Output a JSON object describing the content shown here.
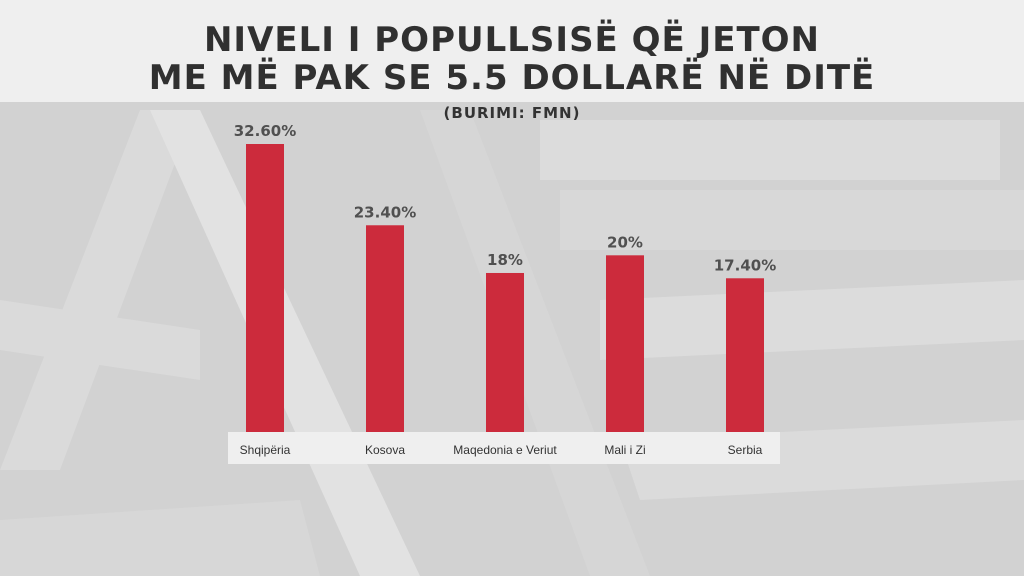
{
  "header": {
    "title_line1": "NIVELI I POPULLSISË QË JETON",
    "title_line2": "ME MË PAK SE 5.5 DOLLARË NË DITË",
    "source": "(BURIMI: FMN)"
  },
  "colors": {
    "bar": "#cc2b3c",
    "value_text": "#505050",
    "category_text": "#333333"
  },
  "chart_data": {
    "type": "bar",
    "title": "NIVELI I POPULLSISË QË JETON ME MË PAK SE 5.5 DOLLARË NË DITË",
    "categories": [
      "Shqipëria",
      "Kosova",
      "Maqedonia e Veriut",
      "Mali i Zi",
      "Serbia"
    ],
    "values": [
      32.6,
      23.4,
      18,
      20,
      17.4
    ],
    "value_labels": [
      "32.60%",
      "23.40%",
      "18%",
      "20%",
      "17.40%"
    ],
    "ylim": [
      0,
      35
    ],
    "grid": false,
    "legend": "none"
  }
}
